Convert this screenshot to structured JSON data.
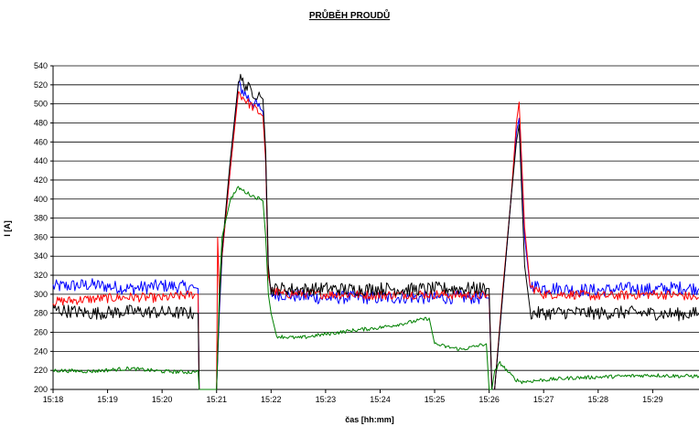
{
  "chart_data": {
    "type": "line",
    "title": "PRŮBĚH PROUDŮ",
    "xlabel": "čas [hh:mm]",
    "ylabel": "I [A]",
    "ylim": [
      200,
      540
    ],
    "y_ticks": [
      "200",
      "220",
      "240",
      "260",
      "280",
      "300",
      "320",
      "340",
      "360",
      "380",
      "400",
      "420",
      "440",
      "460",
      "480",
      "500",
      "520",
      "540"
    ],
    "x_ticks": [
      "15:18",
      "15:19",
      "15:20",
      "15:21",
      "15:22",
      "15:23",
      "15:24",
      "15:25",
      "15:26",
      "15:27",
      "15:28",
      "15:29"
    ],
    "x_range_minutes": [
      0,
      11.85
    ],
    "grid": "horizontal",
    "legend": "none",
    "series": [
      {
        "color": "#0000ff",
        "x": [
          0.0,
          0.7,
          1.4,
          2.0,
          2.6,
          2.66,
          2.68,
          3.0,
          3.05,
          3.1,
          3.25,
          3.4,
          3.6,
          3.8,
          3.85,
          3.9,
          3.95,
          4.0,
          4.2,
          4.5,
          5.0,
          5.5,
          6.0,
          6.5,
          7.0,
          7.5,
          7.95,
          8.0,
          8.05,
          8.1,
          8.25,
          8.4,
          8.5,
          8.55,
          8.65,
          8.75,
          9.0,
          9.5,
          10.0,
          10.5,
          11.0,
          11.5,
          11.85
        ],
        "y": [
          308,
          310,
          306,
          309,
          307,
          306,
          200,
          200,
          280,
          340,
          430,
          520,
          505,
          495,
          492,
          440,
          320,
          300,
          300,
          298,
          296,
          297,
          296,
          297,
          296,
          297,
          296,
          296,
          200,
          200,
          300,
          400,
          470,
          485,
          360,
          310,
          307,
          305,
          304,
          306,
          305,
          307,
          306
        ]
      },
      {
        "color": "#ff0000",
        "x": [
          0.0,
          0.7,
          1.4,
          2.0,
          2.6,
          2.66,
          2.68,
          3.0,
          3.02,
          3.05,
          3.1,
          3.25,
          3.4,
          3.6,
          3.8,
          3.85,
          3.9,
          3.95,
          4.0,
          4.2,
          4.5,
          5.0,
          5.5,
          6.0,
          6.5,
          7.0,
          7.5,
          7.95,
          8.0,
          8.05,
          8.1,
          8.25,
          8.4,
          8.5,
          8.55,
          8.65,
          8.75,
          9.0,
          9.5,
          10.0,
          10.5,
          11.0,
          11.5,
          11.85
        ],
        "y": [
          292,
          295,
          297,
          296,
          300,
          300,
          200,
          200,
          360,
          300,
          340,
          430,
          512,
          500,
          490,
          487,
          440,
          320,
          305,
          300,
          301,
          300,
          300,
          299,
          300,
          300,
          299,
          299,
          299,
          200,
          200,
          305,
          400,
          480,
          502,
          370,
          308,
          300,
          300,
          298,
          299,
          300,
          299,
          296
        ]
      },
      {
        "color": "#000000",
        "x": [
          0.0,
          0.7,
          1.4,
          2.0,
          2.6,
          2.66,
          2.68,
          3.0,
          3.05,
          3.1,
          3.25,
          3.4,
          3.6,
          3.8,
          3.85,
          3.9,
          3.95,
          4.0,
          4.2,
          4.5,
          5.0,
          5.5,
          6.0,
          6.5,
          7.0,
          7.5,
          7.95,
          8.0,
          8.05,
          8.1,
          8.25,
          8.4,
          8.5,
          8.55,
          8.65,
          8.75,
          9.0,
          9.5,
          10.0,
          10.5,
          11.0,
          11.5,
          11.85
        ],
        "y": [
          284,
          280,
          282,
          281,
          280,
          280,
          200,
          200,
          285,
          345,
          440,
          528,
          515,
          508,
          505,
          450,
          330,
          305,
          306,
          305,
          306,
          305,
          306,
          305,
          306,
          306,
          306,
          306,
          200,
          200,
          300,
          400,
          460,
          478,
          330,
          280,
          280,
          281,
          280,
          281,
          280,
          279,
          280
        ]
      },
      {
        "color": "#008000",
        "x": [
          0.0,
          0.7,
          1.4,
          2.0,
          2.6,
          2.66,
          2.68,
          3.0,
          3.05,
          3.1,
          3.25,
          3.4,
          3.6,
          3.8,
          3.85,
          3.9,
          3.95,
          4.0,
          4.1,
          4.5,
          5.0,
          5.5,
          6.0,
          6.5,
          6.9,
          7.0,
          7.2,
          7.5,
          7.95,
          8.0,
          8.05,
          8.1,
          8.2,
          8.4,
          8.5,
          8.6,
          9.0,
          9.5,
          10.0,
          10.5,
          11.0,
          11.5,
          11.85
        ],
        "y": [
          220,
          219,
          222,
          219,
          218,
          220,
          200,
          200,
          300,
          360,
          400,
          412,
          405,
          400,
          398,
          360,
          300,
          280,
          256,
          254,
          258,
          262,
          265,
          270,
          275,
          248,
          245,
          242,
          248,
          200,
          200,
          218,
          228,
          215,
          210,
          208,
          210,
          212,
          213,
          214,
          215,
          214,
          214
        ]
      }
    ]
  }
}
